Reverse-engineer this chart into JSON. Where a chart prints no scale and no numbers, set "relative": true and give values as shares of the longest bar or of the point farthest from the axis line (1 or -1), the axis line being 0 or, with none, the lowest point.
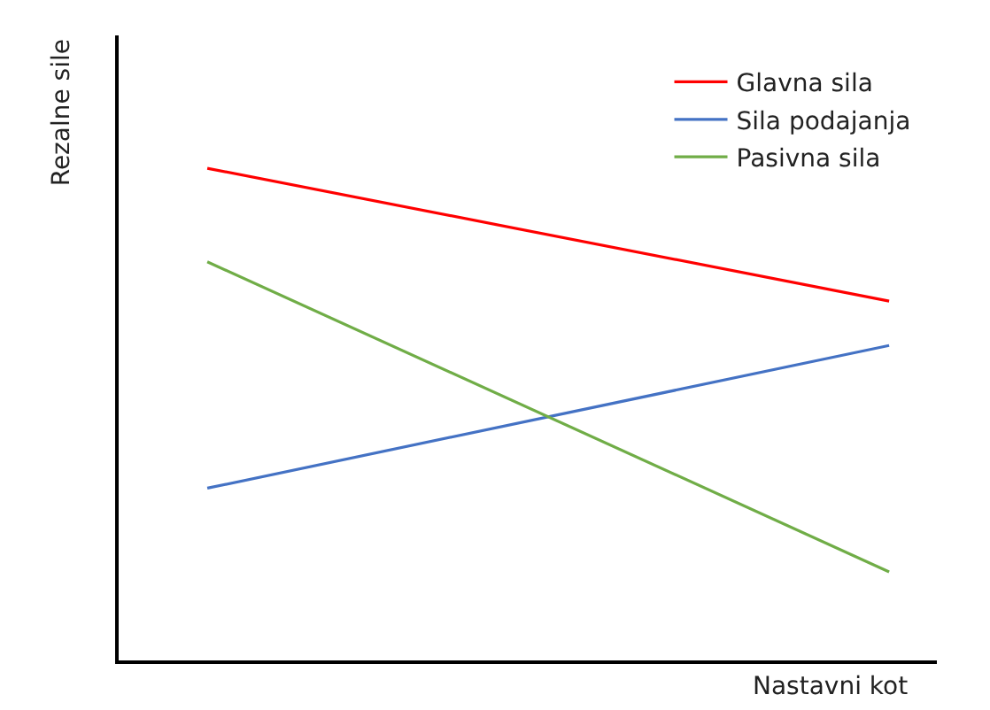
{
  "chart_data": {
    "type": "line",
    "relative": true,
    "xlabel": "Nastavni kot",
    "ylabel": "Rezalne sile",
    "categories": [
      null,
      null
    ],
    "legend": "top right",
    "marker": "none",
    "line_style": "solid",
    "series": [
      {
        "name": "Glavna sila",
        "color": "#ff0000",
        "values": [
          1.0,
          0.73
        ]
      },
      {
        "name": "Sila podajanja",
        "color": "#4472c4",
        "values": [
          0.35,
          0.64
        ]
      },
      {
        "name": "Pasivna sila",
        "color": "#70ad47",
        "values": [
          0.81,
          0.18
        ]
      }
    ]
  }
}
